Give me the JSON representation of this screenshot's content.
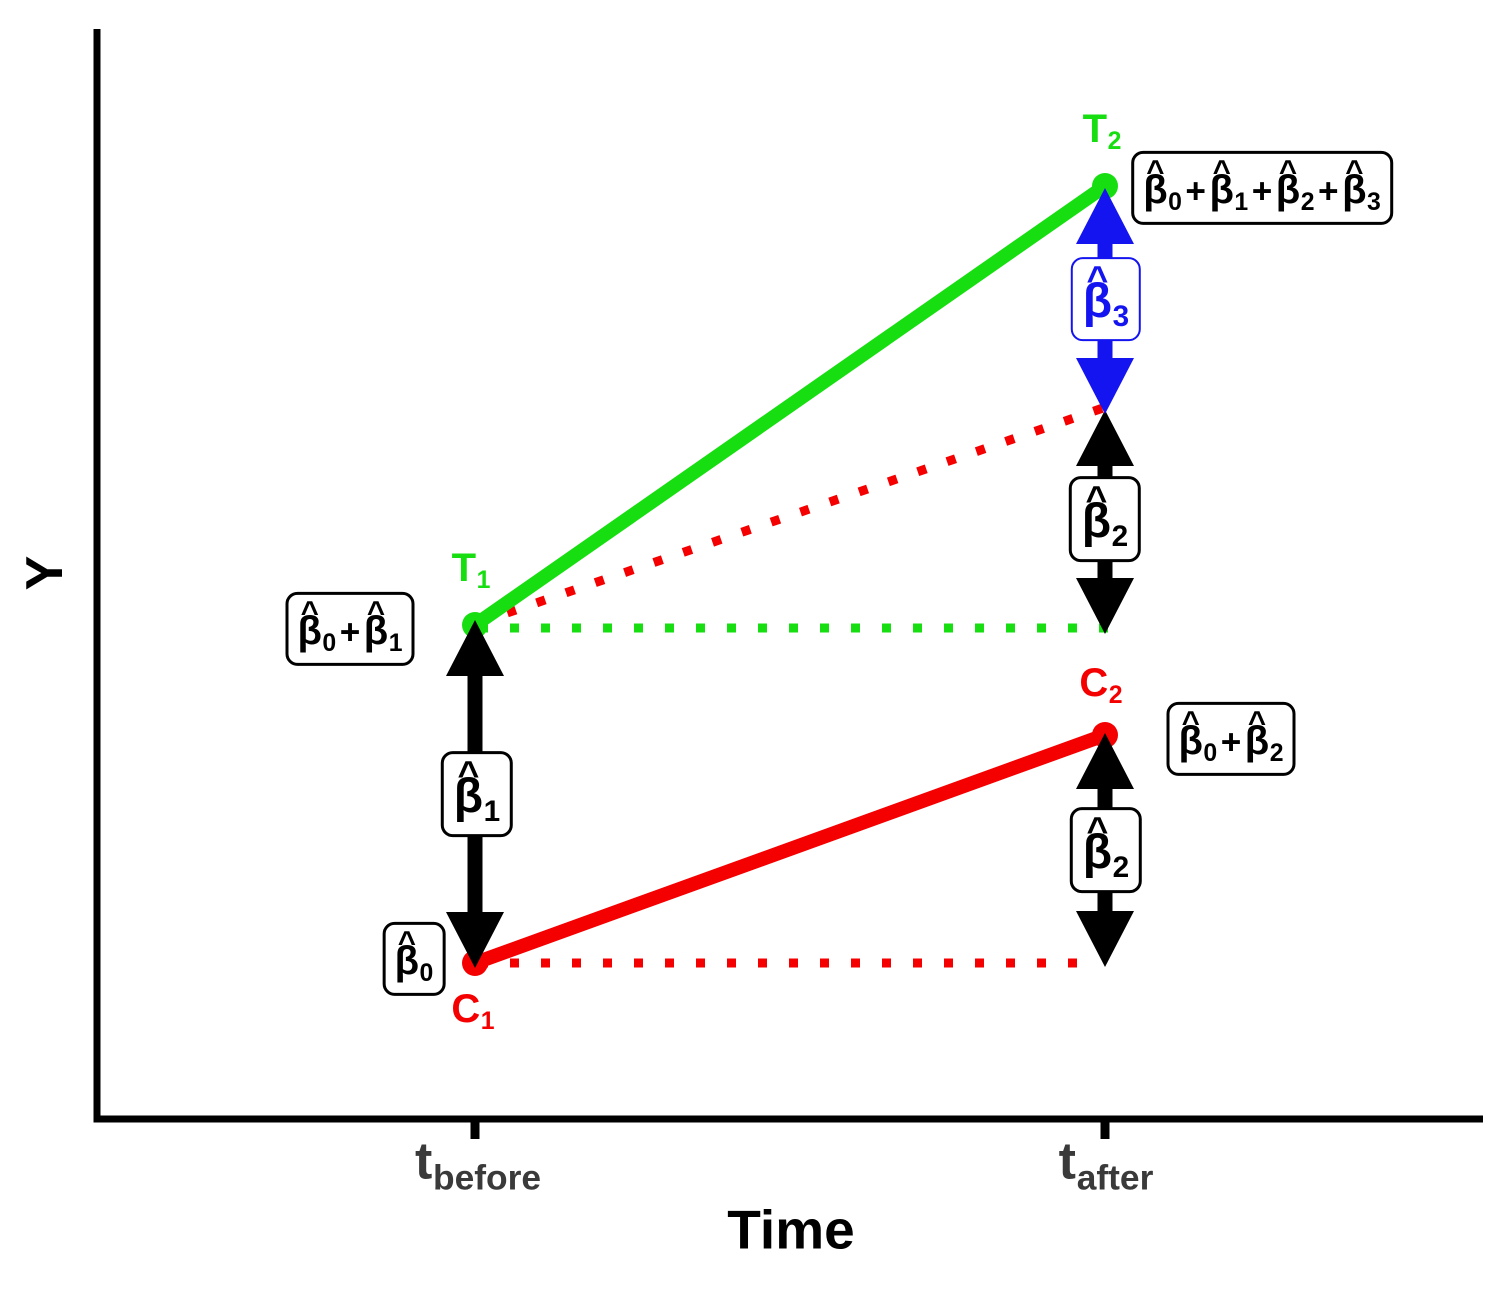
{
  "figure": {
    "description": "Difference-in-differences diagram of regression coefficients for treatment (T) and control (C) groups before and after intervention"
  },
  "colors": {
    "treatment": "#17DE10",
    "control": "#F50000",
    "interaction": "#1414F0",
    "arrow": "#000000",
    "axis": "#000000",
    "tick_text": "#3A3A3A"
  },
  "axes": {
    "y_label": "Y",
    "x_label": "Time",
    "ticks": {
      "before": [
        {
          "base": "t",
          "sub": "before"
        }
      ],
      "after": [
        {
          "base": "t",
          "sub": "after"
        }
      ]
    }
  },
  "point_labels": {
    "T1": [
      {
        "base": "T",
        "sub": "1"
      }
    ],
    "T2": [
      {
        "base": "T",
        "sub": "2"
      }
    ],
    "C1": [
      {
        "base": "C",
        "sub": "1"
      }
    ],
    "C2": [
      {
        "base": "C",
        "sub": "2"
      }
    ]
  },
  "formulas": {
    "b0": [
      {
        "hat": true,
        "base": "β",
        "sub": "0"
      }
    ],
    "b1": [
      {
        "hat": true,
        "base": "β",
        "sub": "1"
      }
    ],
    "b2": [
      {
        "hat": true,
        "base": "β",
        "sub": "2"
      }
    ],
    "b3": [
      {
        "hat": true,
        "base": "β",
        "sub": "3"
      }
    ],
    "b0_b1": [
      {
        "hat": true,
        "base": "β",
        "sub": "0"
      },
      {
        "text": "+"
      },
      {
        "hat": true,
        "base": "β",
        "sub": "1"
      }
    ],
    "b0_b2": [
      {
        "hat": true,
        "base": "β",
        "sub": "0"
      },
      {
        "text": "+"
      },
      {
        "hat": true,
        "base": "β",
        "sub": "2"
      }
    ],
    "b0_b1_b2_b3": [
      {
        "hat": true,
        "base": "β",
        "sub": "0"
      },
      {
        "text": "+"
      },
      {
        "hat": true,
        "base": "β",
        "sub": "1"
      },
      {
        "text": "+"
      },
      {
        "hat": true,
        "base": "β",
        "sub": "2"
      },
      {
        "text": "+"
      },
      {
        "hat": true,
        "base": "β",
        "sub": "3"
      }
    ]
  },
  "chart_data": {
    "type": "line",
    "title": "",
    "xlabel": "Time",
    "ylabel": "Y",
    "x_categories": [
      "t_before",
      "t_after"
    ],
    "grid": false,
    "legend": false,
    "series": [
      {
        "name": "treatment group line",
        "color_key": "treatment",
        "style": "solid",
        "marker": "circle",
        "point_labels": [
          "T1",
          "T2"
        ],
        "y_expr": [
          "β̂0 + β̂1",
          "β̂0 + β̂1 + β̂2 + β̂3"
        ],
        "y_rel_estimate": [
          0.45,
          0.86
        ]
      },
      {
        "name": "control group line",
        "color_key": "control",
        "style": "solid",
        "marker": "circle",
        "point_labels": [
          "C1",
          "C2"
        ],
        "y_expr": [
          "β̂0",
          "β̂0 + β̂2"
        ],
        "y_rel_estimate": [
          0.14,
          0.35
        ]
      },
      {
        "name": "treatment counterfactual (parallel trend)",
        "color_key": "control",
        "style": "dotted",
        "y_expr": [
          "β̂0 + β̂1",
          "β̂0 + β̂1 + β̂2"
        ],
        "y_rel_estimate": [
          0.45,
          0.65
        ]
      },
      {
        "name": "treatment before-level reference",
        "color_key": "treatment",
        "style": "dotted",
        "y_expr": [
          "β̂0 + β̂1",
          "β̂0 + β̂1"
        ],
        "y_rel_estimate": [
          0.45,
          0.45
        ]
      },
      {
        "name": "control before-level reference",
        "color_key": "control",
        "style": "dotted",
        "y_expr": [
          "β̂0",
          "β̂0"
        ],
        "y_rel_estimate": [
          0.14,
          0.14
        ]
      }
    ],
    "arrow_annotations": [
      {
        "label": "β̂1",
        "color_key": "arrow",
        "x": "t_before",
        "from_expr": "β̂0",
        "to_expr": "β̂0 + β̂1"
      },
      {
        "label": "β̂3",
        "color_key": "interaction",
        "x": "t_after",
        "from_expr": "β̂0 + β̂1 + β̂2",
        "to_expr": "β̂0 + β̂1 + β̂2 + β̂3"
      },
      {
        "label": "β̂2",
        "color_key": "arrow",
        "x": "t_after",
        "from_expr": "β̂0 + β̂1",
        "to_expr": "β̂0 + β̂1 + β̂2"
      },
      {
        "label": "β̂2",
        "color_key": "arrow",
        "x": "t_after",
        "from_expr": "β̂0",
        "to_expr": "β̂0 + β̂2"
      }
    ],
    "value_boxes": [
      {
        "near": "T1",
        "text": "β̂0 + β̂1"
      },
      {
        "near": "C1",
        "text": "β̂0"
      },
      {
        "near": "T2",
        "text": "β̂0 + β̂1 + β̂2 + β̂3"
      },
      {
        "near": "C2",
        "text": "β̂0 + β̂2"
      }
    ]
  }
}
